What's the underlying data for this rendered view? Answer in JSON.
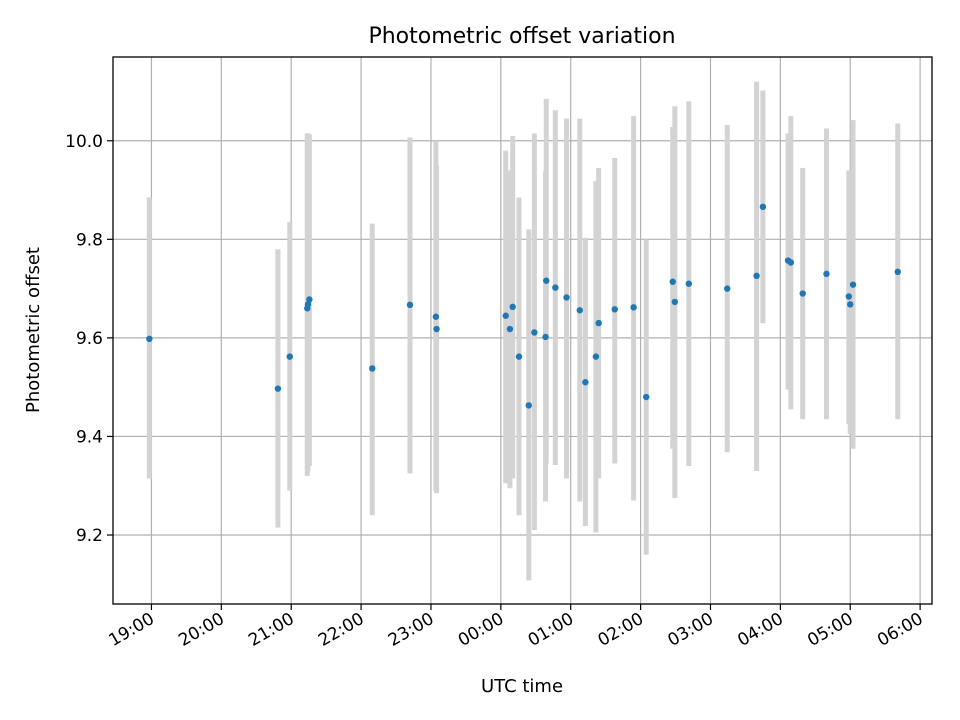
{
  "chart_data": {
    "type": "scatter",
    "title": "Photometric offset variation",
    "xlabel": "UTC time",
    "ylabel": "Photometric offset",
    "x_unit": "UTC time, hours after the 19:00 tick on the first night",
    "xlim": [
      -0.55,
      11.17
    ],
    "ylim": [
      9.06,
      10.17
    ],
    "x_ticks": [
      {
        "value": 0,
        "label": "19:00"
      },
      {
        "value": 1,
        "label": "20:00"
      },
      {
        "value": 2,
        "label": "21:00"
      },
      {
        "value": 3,
        "label": "22:00"
      },
      {
        "value": 4,
        "label": "23:00"
      },
      {
        "value": 5,
        "label": "00:00"
      },
      {
        "value": 6,
        "label": "01:00"
      },
      {
        "value": 7,
        "label": "02:00"
      },
      {
        "value": 8,
        "label": "03:00"
      },
      {
        "value": 9,
        "label": "04:00"
      },
      {
        "value": 10,
        "label": "05:00"
      },
      {
        "value": 11,
        "label": "06:00"
      }
    ],
    "y_ticks": [
      {
        "value": 9.2,
        "label": "9.2"
      },
      {
        "value": 9.4,
        "label": "9.4"
      },
      {
        "value": 9.6,
        "label": "9.6"
      },
      {
        "value": 9.8,
        "label": "9.8"
      },
      {
        "value": 10.0,
        "label": "10.0"
      }
    ],
    "grid": true,
    "series": [
      {
        "color": "#1f77b4",
        "error_color": "#d3d3d3",
        "points": [
          {
            "x": -0.03,
            "y": 9.598,
            "lo": 9.315,
            "hi": 9.885
          },
          {
            "x": 1.81,
            "y": 9.497,
            "lo": 9.215,
            "hi": 9.78
          },
          {
            "x": 1.98,
            "y": 9.562,
            "lo": 9.29,
            "hi": 9.835
          },
          {
            "x": 2.23,
            "y": 9.66,
            "lo": 9.32,
            "hi": 10.015
          },
          {
            "x": 2.24,
            "y": 9.668,
            "lo": 9.33,
            "hi": 10.015
          },
          {
            "x": 2.26,
            "y": 9.678,
            "lo": 9.34,
            "hi": 10.013
          },
          {
            "x": 3.16,
            "y": 9.538,
            "lo": 9.24,
            "hi": 9.832
          },
          {
            "x": 3.7,
            "y": 9.667,
            "lo": 9.325,
            "hi": 10.007
          },
          {
            "x": 4.07,
            "y": 9.643,
            "lo": 9.29,
            "hi": 10.0
          },
          {
            "x": 4.08,
            "y": 9.618,
            "lo": 9.285,
            "hi": 9.95
          },
          {
            "x": 5.07,
            "y": 9.645,
            "lo": 9.305,
            "hi": 9.98
          },
          {
            "x": 5.13,
            "y": 9.618,
            "lo": 9.295,
            "hi": 9.94
          },
          {
            "x": 5.17,
            "y": 9.663,
            "lo": 9.315,
            "hi": 10.01
          },
          {
            "x": 5.26,
            "y": 9.562,
            "lo": 9.24,
            "hi": 9.885
          },
          {
            "x": 5.4,
            "y": 9.463,
            "lo": 9.108,
            "hi": 9.82
          },
          {
            "x": 5.48,
            "y": 9.611,
            "lo": 9.21,
            "hi": 10.015
          },
          {
            "x": 5.64,
            "y": 9.602,
            "lo": 9.268,
            "hi": 9.938
          },
          {
            "x": 5.65,
            "y": 9.716,
            "lo": 9.345,
            "hi": 10.085
          },
          {
            "x": 5.78,
            "y": 9.702,
            "lo": 9.342,
            "hi": 10.062
          },
          {
            "x": 5.94,
            "y": 9.682,
            "lo": 9.315,
            "hi": 10.045
          },
          {
            "x": 6.13,
            "y": 9.656,
            "lo": 9.268,
            "hi": 10.045
          },
          {
            "x": 6.21,
            "y": 9.51,
            "lo": 9.218,
            "hi": 9.803
          },
          {
            "x": 6.36,
            "y": 9.562,
            "lo": 9.205,
            "hi": 9.918
          },
          {
            "x": 6.4,
            "y": 9.63,
            "lo": 9.315,
            "hi": 9.945
          },
          {
            "x": 6.63,
            "y": 9.658,
            "lo": 9.345,
            "hi": 9.965
          },
          {
            "x": 6.9,
            "y": 9.662,
            "lo": 9.27,
            "hi": 10.05
          },
          {
            "x": 7.08,
            "y": 9.48,
            "lo": 9.16,
            "hi": 9.8
          },
          {
            "x": 7.46,
            "y": 9.714,
            "lo": 9.375,
            "hi": 10.028
          },
          {
            "x": 7.49,
            "y": 9.673,
            "lo": 9.275,
            "hi": 10.07
          },
          {
            "x": 7.69,
            "y": 9.71,
            "lo": 9.34,
            "hi": 10.08
          },
          {
            "x": 8.24,
            "y": 9.7,
            "lo": 9.368,
            "hi": 10.032
          },
          {
            "x": 8.66,
            "y": 9.726,
            "lo": 9.33,
            "hi": 10.12
          },
          {
            "x": 8.75,
            "y": 9.866,
            "lo": 9.63,
            "hi": 10.102
          },
          {
            "x": 9.11,
            "y": 9.757,
            "lo": 9.495,
            "hi": 10.015
          },
          {
            "x": 9.15,
            "y": 9.753,
            "lo": 9.455,
            "hi": 10.05
          },
          {
            "x": 9.32,
            "y": 9.69,
            "lo": 9.435,
            "hi": 9.945
          },
          {
            "x": 9.66,
            "y": 9.73,
            "lo": 9.435,
            "hi": 10.025
          },
          {
            "x": 9.98,
            "y": 9.684,
            "lo": 9.425,
            "hi": 9.94
          },
          {
            "x": 10.0,
            "y": 9.668,
            "lo": 9.405,
            "hi": 9.935
          },
          {
            "x": 10.04,
            "y": 9.708,
            "lo": 9.375,
            "hi": 10.042
          },
          {
            "x": 10.68,
            "y": 9.734,
            "lo": 9.435,
            "hi": 10.035
          }
        ]
      }
    ]
  }
}
